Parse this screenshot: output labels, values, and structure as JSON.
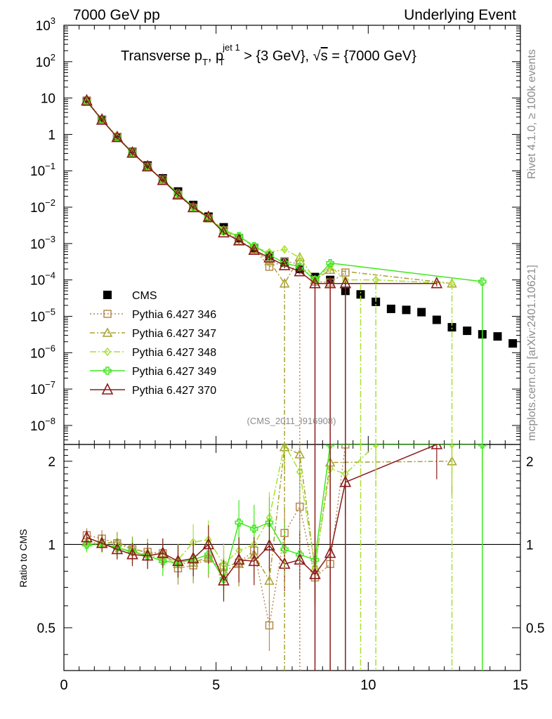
{
  "header": {
    "left": "7000 GeV pp",
    "right": "Underlying Event",
    "title_part1": "Transverse p",
    "title_sub1": "T",
    "title_part2": ", p",
    "title_sup2": "jet 1",
    "title_sub2": "T",
    "title_part3": " > {3 GeV}, ",
    "title_sqrt_s": "s",
    "title_part4": " = {7000 GeV}"
  },
  "side_labels": {
    "upper": "Rivet 4.1.0, ≥ 100k events",
    "lower": "mcplots.cern.ch [arXiv:2401.10621]"
  },
  "analysis_id": "(CMS_2011_I916908)",
  "ratio_ylabel": "Ratio to CMS",
  "colors": {
    "cms": "#000000",
    "p346": "#b48a52",
    "p347": "#a8a032",
    "p348": "#a8e030",
    "p349": "#40e820",
    "p370": "#8b1a1a"
  },
  "chart_data": {
    "type": "scatter",
    "title": "Transverse pT, pT jet1 > {3 GeV}, sqrt(s) = {7000 GeV}",
    "xlim": [
      0,
      15
    ],
    "ylim_main": [
      3e-09,
      1000
    ],
    "yscale_main": "log",
    "ylim_ratio": [
      0.35,
      2.3
    ],
    "xticks": [
      "0",
      "5",
      "10",
      "15"
    ],
    "yticks_main": [
      "10^3",
      "10^2",
      "10",
      "1",
      "10^-1",
      "10^-2",
      "10^-3",
      "10^-4",
      "10^-5",
      "10^-6",
      "10^-7",
      "10^-8"
    ],
    "yticks_ratio": [
      "0.5",
      "1",
      "2"
    ],
    "legend_position": "lower-left",
    "series": [
      {
        "name": "CMS",
        "key": "cms",
        "x": [
          0.75,
          1.25,
          1.75,
          2.25,
          2.75,
          3.25,
          3.75,
          4.25,
          4.75,
          5.25,
          5.75,
          6.25,
          6.75,
          7.25,
          7.75,
          8.25,
          8.75,
          9.25,
          9.75,
          10.25,
          10.75,
          11.25,
          11.75,
          12.25,
          12.75,
          13.25,
          13.75,
          14.25,
          14.75
        ],
        "y": [
          8,
          2.5,
          0.85,
          0.33,
          0.14,
          0.062,
          0.027,
          0.0115,
          0.0055,
          0.0028,
          0.0014,
          0.00075,
          0.00045,
          0.0003,
          0.0002,
          0.00012,
          0.0001,
          5e-05,
          4e-05,
          2.5e-05,
          1.6e-05,
          1.5e-05,
          1.3e-05,
          8e-06,
          5e-06,
          4e-06,
          3.2e-06,
          2.8e-06,
          1.8e-06
        ]
      },
      {
        "name": "Pythia 6.427 346",
        "key": "p346",
        "x": [
          0.75,
          1.25,
          1.75,
          2.25,
          2.75,
          3.25,
          3.75,
          4.25,
          4.75,
          5.25,
          5.75,
          6.25,
          6.75,
          7.25,
          7.75,
          8.25,
          8.75,
          9.25
        ],
        "y": [
          8.6,
          2.6,
          0.86,
          0.32,
          0.13,
          0.058,
          0.022,
          0.0096,
          0.0049,
          0.0023,
          0.0012,
          0.00071,
          0.00023,
          0.00033,
          0.00027,
          9e-05,
          8.5e-05,
          0.00016
        ],
        "ratio": [
          1.08,
          1.05,
          1.01,
          0.96,
          0.94,
          0.93,
          0.82,
          0.84,
          0.89,
          0.83,
          0.86,
          0.95,
          0.51,
          1.1,
          1.37,
          0.76,
          0.85,
          3.2
        ]
      },
      {
        "name": "Pythia 6.427 347",
        "key": "p347",
        "x": [
          0.75,
          1.25,
          1.75,
          2.25,
          2.75,
          3.25,
          3.75,
          4.25,
          4.75,
          5.25,
          5.75,
          6.25,
          6.75,
          7.25,
          7.75,
          8.25,
          8.75,
          12.75
        ],
        "y": [
          8.2,
          2.5,
          0.87,
          0.32,
          0.13,
          0.057,
          0.023,
          0.0097,
          0.005,
          0.0023,
          0.0012,
          0.00069,
          0.00033,
          8e-05,
          0.00042,
          0.0001,
          0.00019,
          8e-05
        ],
        "ratio": [
          1.02,
          1.01,
          1.02,
          0.97,
          0.93,
          0.92,
          0.85,
          0.86,
          0.9,
          0.8,
          0.85,
          0.92,
          0.74,
          2.25,
          2.12,
          0.82,
          1.98,
          2.0
        ]
      },
      {
        "name": "Pythia 6.427 348",
        "key": "p348",
        "x": [
          0.75,
          1.25,
          1.75,
          2.25,
          2.75,
          3.25,
          3.75,
          4.25,
          4.75,
          5.25,
          5.75,
          6.25,
          6.75,
          7.25,
          7.75,
          8.25,
          8.75,
          9.25,
          10.25,
          12.75
        ],
        "y": [
          7.9,
          2.5,
          0.84,
          0.31,
          0.13,
          0.055,
          0.024,
          0.0103,
          0.0055,
          0.0024,
          0.0016,
          0.0008,
          0.00058,
          0.00069,
          0.00041,
          0.0001,
          0.00024,
          0.0001,
          0.0001,
          8e-05
        ],
        "ratio": [
          0.99,
          1.0,
          0.98,
          0.94,
          0.92,
          0.88,
          0.88,
          1.02,
          1.04,
          0.85,
          0.95,
          1.0,
          1.25,
          2.32,
          1.83,
          0.83,
          1.88,
          1.8,
          2.5,
          2.5
        ]
      },
      {
        "name": "Pythia 6.427 349",
        "key": "p349",
        "x": [
          0.75,
          1.25,
          1.75,
          2.25,
          2.75,
          3.25,
          3.75,
          4.25,
          4.75,
          5.25,
          5.75,
          6.25,
          6.75,
          7.25,
          7.75,
          8.25,
          8.75,
          13.75
        ],
        "y": [
          8.0,
          2.5,
          0.85,
          0.32,
          0.13,
          0.054,
          0.024,
          0.01,
          0.0051,
          0.0022,
          0.0016,
          0.00085,
          0.00049,
          0.00029,
          0.00023,
          0.0001,
          0.00029,
          9e-05
        ],
        "ratio": [
          1.0,
          1.01,
          0.97,
          0.94,
          0.91,
          0.87,
          0.86,
          0.88,
          0.92,
          0.75,
          1.2,
          1.14,
          1.2,
          0.96,
          0.92,
          0.88,
          2.5,
          2.5
        ]
      },
      {
        "name": "Pythia 6.427 370",
        "key": "p370",
        "x": [
          0.75,
          1.25,
          1.75,
          2.25,
          2.75,
          3.25,
          3.75,
          4.25,
          4.75,
          5.25,
          5.75,
          6.25,
          6.75,
          7.25,
          7.75,
          8.25,
          8.75,
          9.25,
          12.25
        ],
        "y": [
          8.4,
          2.5,
          0.83,
          0.31,
          0.13,
          0.055,
          0.022,
          0.0098,
          0.0053,
          0.002,
          0.0012,
          0.00066,
          0.00041,
          0.00025,
          0.00017,
          8e-05,
          8e-05,
          8e-05,
          8e-05
        ],
        "ratio": [
          1.06,
          1.01,
          0.96,
          0.92,
          0.91,
          0.93,
          0.87,
          0.89,
          1.0,
          0.74,
          0.88,
          0.87,
          0.99,
          0.85,
          0.88,
          0.78,
          0.93,
          1.68,
          2.5
        ]
      }
    ]
  }
}
